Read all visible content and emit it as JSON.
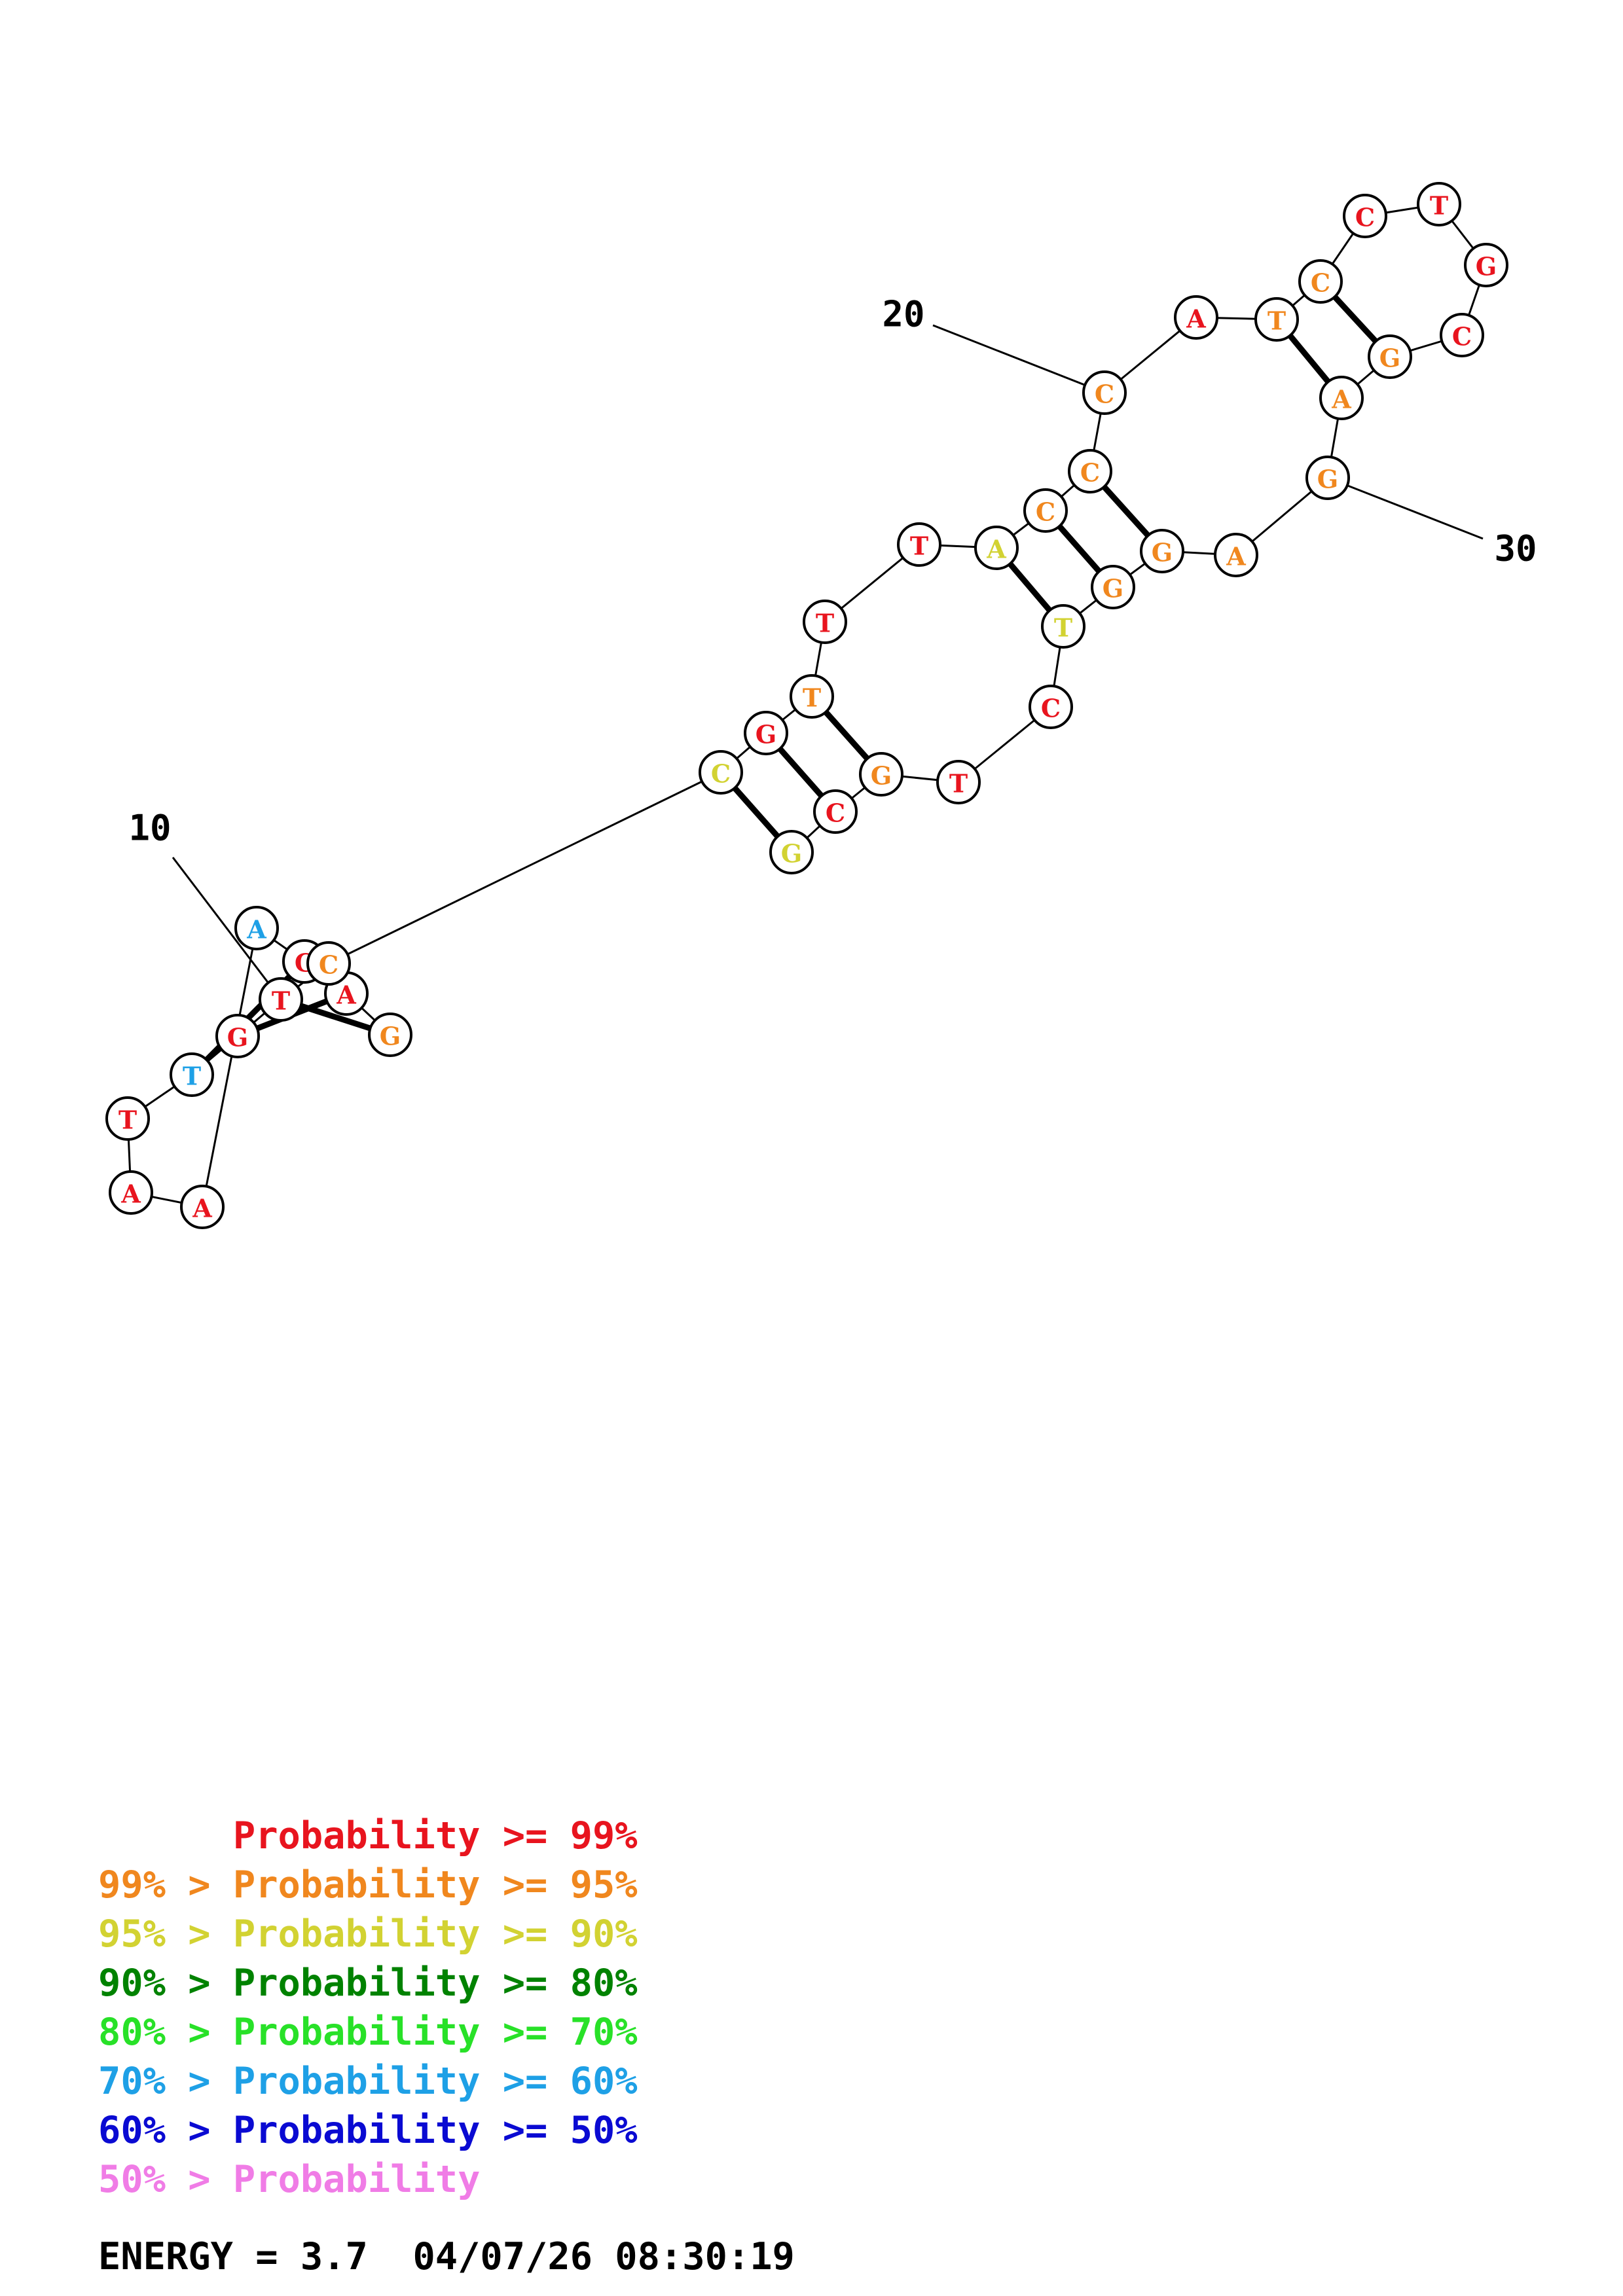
{
  "colors": {
    "red": "#e8141e",
    "orange": "#f0871e",
    "yellow": "#d2d232",
    "dark_green": "#008200",
    "green": "#28e128",
    "cyan": "#1ea0e6",
    "blue": "#0a0ad2",
    "pink": "#f07ce6"
  },
  "structure": {
    "bases": [
      {
        "letter": "G",
        "color": "orange"
      },
      {
        "letter": "A",
        "color": "red"
      },
      {
        "letter": "C",
        "color": "red"
      },
      {
        "letter": "A",
        "color": "cyan"
      },
      {
        "letter": "A",
        "color": "red"
      },
      {
        "letter": "A",
        "color": "red"
      },
      {
        "letter": "T",
        "color": "red"
      },
      {
        "letter": "T",
        "color": "cyan"
      },
      {
        "letter": "G",
        "color": "red"
      },
      {
        "letter": "T",
        "color": "red"
      },
      {
        "letter": "C",
        "color": "orange"
      },
      {
        "letter": "C",
        "color": "yellow"
      },
      {
        "letter": "G",
        "color": "red"
      },
      {
        "letter": "T",
        "color": "orange"
      },
      {
        "letter": "T",
        "color": "red"
      },
      {
        "letter": "T",
        "color": "red"
      },
      {
        "letter": "A",
        "color": "yellow"
      },
      {
        "letter": "C",
        "color": "orange"
      },
      {
        "letter": "C",
        "color": "orange"
      },
      {
        "letter": "C",
        "color": "orange"
      },
      {
        "letter": "A",
        "color": "red"
      },
      {
        "letter": "T",
        "color": "orange"
      },
      {
        "letter": "C",
        "color": "orange"
      },
      {
        "letter": "C",
        "color": "red"
      },
      {
        "letter": "T",
        "color": "red"
      },
      {
        "letter": "G",
        "color": "red"
      },
      {
        "letter": "C",
        "color": "red"
      },
      {
        "letter": "G",
        "color": "orange"
      },
      {
        "letter": "A",
        "color": "orange"
      },
      {
        "letter": "G",
        "color": "orange"
      },
      {
        "letter": "A",
        "color": "orange"
      },
      {
        "letter": "G",
        "color": "orange"
      },
      {
        "letter": "G",
        "color": "orange"
      },
      {
        "letter": "T",
        "color": "yellow"
      },
      {
        "letter": "C",
        "color": "red"
      },
      {
        "letter": "T",
        "color": "red"
      },
      {
        "letter": "G",
        "color": "orange"
      },
      {
        "letter": "C",
        "color": "red"
      },
      {
        "letter": "G",
        "color": "yellow"
      }
    ],
    "pairs": [
      [
        1,
        39
      ],
      [
        2,
        38
      ],
      [
        3,
        37
      ],
      [
        4,
        36
      ]
    ],
    "position_labels": [
      {
        "text": "10",
        "base": 10
      },
      {
        "text": "20",
        "base": 20
      },
      {
        "text": "30",
        "base": 30
      }
    ]
  },
  "legend": [
    {
      "prefix": "",
      "text": "Probability >= 99%",
      "color": "red"
    },
    {
      "prefix": "99% > ",
      "text": "Probability >= 95%",
      "color": "orange"
    },
    {
      "prefix": "95% > ",
      "text": "Probability >= 90%",
      "color": "yellow"
    },
    {
      "prefix": "90% > ",
      "text": "Probability >= 80%",
      "color": "dark_green"
    },
    {
      "prefix": "80% > ",
      "text": "Probability >= 70%",
      "color": "green"
    },
    {
      "prefix": "70% > ",
      "text": "Probability >= 60%",
      "color": "cyan"
    },
    {
      "prefix": "60% > ",
      "text": "Probability >= 50%",
      "color": "blue"
    },
    {
      "prefix": "50% > ",
      "text": "Probability",
      "color": "pink"
    }
  ],
  "footer": {
    "energy": "ENERGY = 3.7",
    "timestamp": "04/07/26 08:30:19"
  }
}
